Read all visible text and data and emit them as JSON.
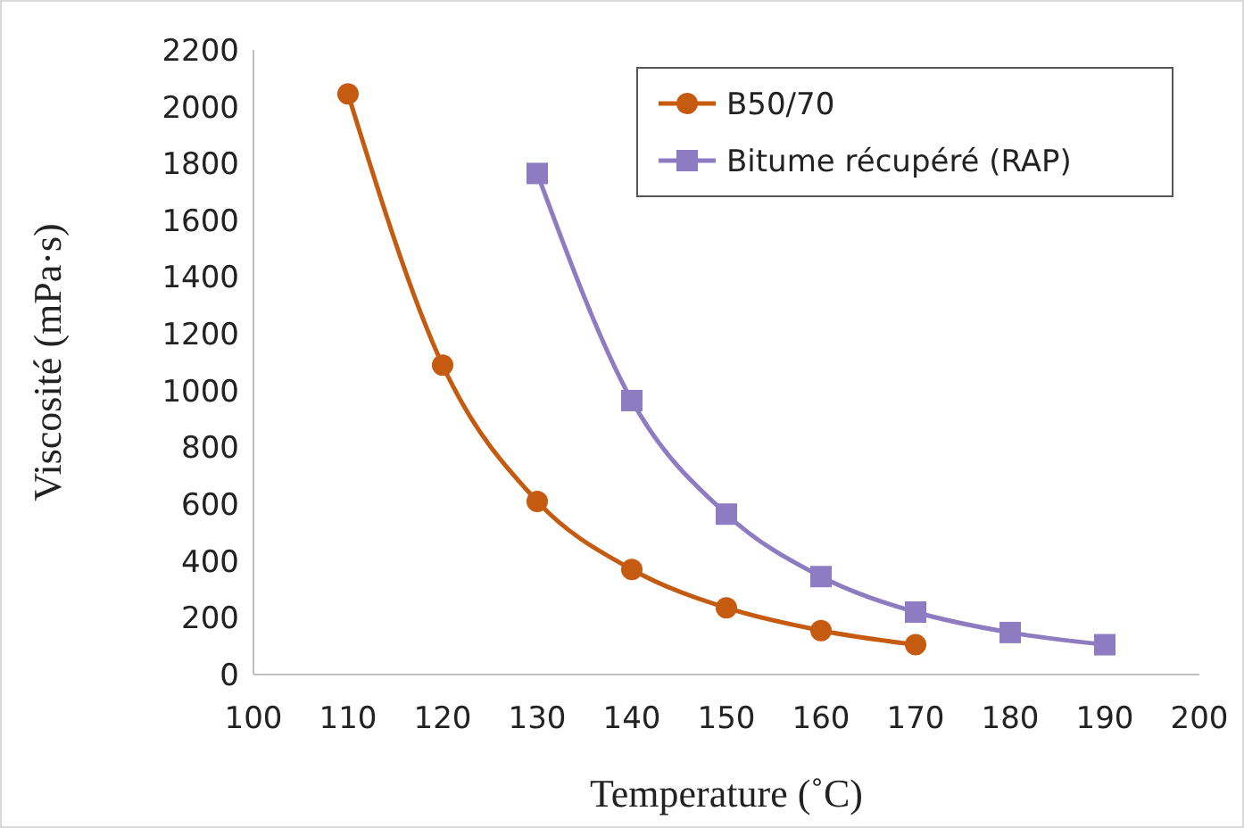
{
  "chart_data": {
    "type": "line",
    "xlabel": "Temperature (˚C)",
    "ylabel": "Viscosité (mPa·s)",
    "xlim": [
      100,
      200
    ],
    "xticks": [
      100,
      110,
      120,
      130,
      140,
      150,
      160,
      170,
      180,
      190,
      200
    ],
    "ylim": [
      0,
      2200
    ],
    "yticks": [
      0,
      200,
      400,
      600,
      800,
      1000,
      1200,
      1400,
      1600,
      1800,
      2000,
      2200
    ],
    "legend": "top right",
    "grid": false,
    "line_style": "solid",
    "series": [
      {
        "name": "B50/70",
        "color": "#c55a11",
        "marker": "circle",
        "x": [
          110,
          120,
          130,
          140,
          150,
          160,
          170
        ],
        "values": [
          2045,
          1090,
          610,
          370,
          235,
          155,
          105
        ]
      },
      {
        "name": "Bitume récupéré (RAP)",
        "color": "#8e7cc3",
        "marker": "square",
        "x": [
          130,
          140,
          150,
          160,
          170,
          180,
          190
        ],
        "values": [
          1765,
          965,
          565,
          345,
          220,
          148,
          105
        ]
      }
    ]
  }
}
